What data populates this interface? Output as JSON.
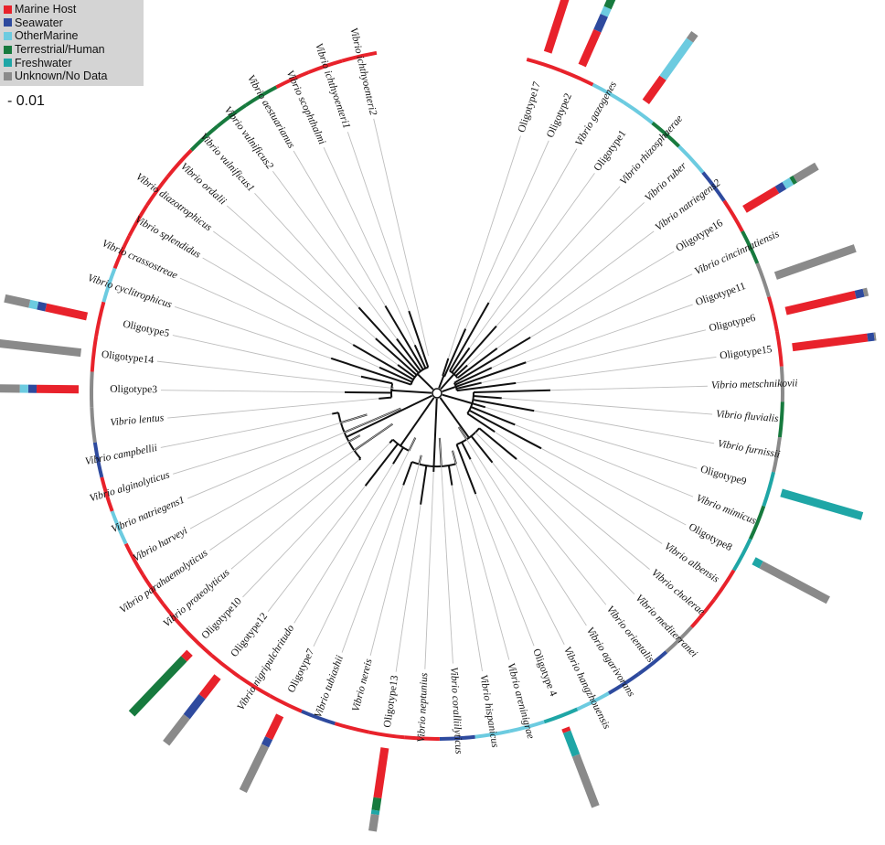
{
  "legend": {
    "items": [
      {
        "label": "Marine Host",
        "color": "#e8222b"
      },
      {
        "label": "Seawater",
        "color": "#2e4a9e"
      },
      {
        "label": "OtherMarine",
        "color": "#6ccbe0"
      },
      {
        "label": "Terrestrial/Human",
        "color": "#177a3e"
      },
      {
        "label": "Freshwater",
        "color": "#1fa6a6"
      },
      {
        "label": "Unknown/No Data",
        "color": "#8a8a8a"
      }
    ]
  },
  "scale_bar": {
    "label": "0.01"
  },
  "tree": {
    "tips": [
      {
        "label": "Oligotype17",
        "italic": false
      },
      {
        "label": "Oligotype2",
        "italic": false
      },
      {
        "label": "Vibrio gazogenes",
        "italic": true
      },
      {
        "label": "Oligotype1",
        "italic": false
      },
      {
        "label": "Vibrio rhizosphaerae",
        "italic": true
      },
      {
        "label": "Vibrio ruber",
        "italic": true
      },
      {
        "label": "Vibrio natriegens2",
        "italic": true
      },
      {
        "label": "Oligotype16",
        "italic": false
      },
      {
        "label": "Vibrio cincinnatiensis",
        "italic": true
      },
      {
        "label": "Oligotype11",
        "italic": false
      },
      {
        "label": "Oligotype6",
        "italic": false
      },
      {
        "label": "Oligotype15",
        "italic": false
      },
      {
        "label": "Vibrio metschnikovii",
        "italic": true
      },
      {
        "label": "Vibrio fluvialis",
        "italic": true
      },
      {
        "label": "Vibrio furnissii",
        "italic": true
      },
      {
        "label": "Oligotype9",
        "italic": false
      },
      {
        "label": "Vibrio mimicus",
        "italic": true
      },
      {
        "label": "Oligotype8",
        "italic": false
      },
      {
        "label": "Vibrio albensis",
        "italic": true
      },
      {
        "label": "Vibrio cholerae",
        "italic": true
      },
      {
        "label": "Vibrio mediterranei",
        "italic": true
      },
      {
        "label": "Vibrio orientalis",
        "italic": true
      },
      {
        "label": "Vibrio agarivorans",
        "italic": true
      },
      {
        "label": "Vibrio hangzhouensis",
        "italic": true
      },
      {
        "label": "Oligotype 4",
        "italic": false
      },
      {
        "label": "Vibrio areninigrae",
        "italic": true
      },
      {
        "label": "Vibrio hispanicus",
        "italic": true
      },
      {
        "label": "Vibrio coralliilyticus",
        "italic": true
      },
      {
        "label": "Vibrio neptunius",
        "italic": true
      },
      {
        "label": "Oligotype13",
        "italic": false
      },
      {
        "label": "Vibrio nereis",
        "italic": true
      },
      {
        "label": "Vibrio tubiashii",
        "italic": true
      },
      {
        "label": "Oligotype7",
        "italic": false
      },
      {
        "label": "Vibrio nigripulchritudo",
        "italic": true
      },
      {
        "label": "Oligotype12",
        "italic": false
      },
      {
        "label": "Oligotype10",
        "italic": false
      },
      {
        "label": "Vibrio proteolyticus",
        "italic": true
      },
      {
        "label": "Vibrio parahaemolyticus",
        "italic": true
      },
      {
        "label": "Vibrio harveyi",
        "italic": true
      },
      {
        "label": "Vibrio natriegens1",
        "italic": true
      },
      {
        "label": "Vibrio alginolyticus",
        "italic": true
      },
      {
        "label": "Vibrio campbellii",
        "italic": true
      },
      {
        "label": "Vibrio lentus",
        "italic": true
      },
      {
        "label": "Oligotype3",
        "italic": false
      },
      {
        "label": "Oligotype14",
        "italic": false
      },
      {
        "label": "Oligotype5",
        "italic": false
      },
      {
        "label": "Vibrio cyclitrophicus",
        "italic": true
      },
      {
        "label": "Vibrio crassostreae",
        "italic": true
      },
      {
        "label": "Vibrio splendidus",
        "italic": true
      },
      {
        "label": "Vibrio diazotrophicus",
        "italic": true
      },
      {
        "label": "Vibrio ordalii",
        "italic": true
      },
      {
        "label": "Vibrio vulnificus1",
        "italic": true
      },
      {
        "label": "Vibrio vulnificus2",
        "italic": true
      },
      {
        "label": "Vibrio aestuarianus",
        "italic": true
      },
      {
        "label": "Vibrio scophthalmi",
        "italic": true
      },
      {
        "label": "Vibrio ichthyoenteri1",
        "italic": true
      },
      {
        "label": "Vibrio ichthyoenteri2",
        "italic": true
      }
    ]
  }
}
